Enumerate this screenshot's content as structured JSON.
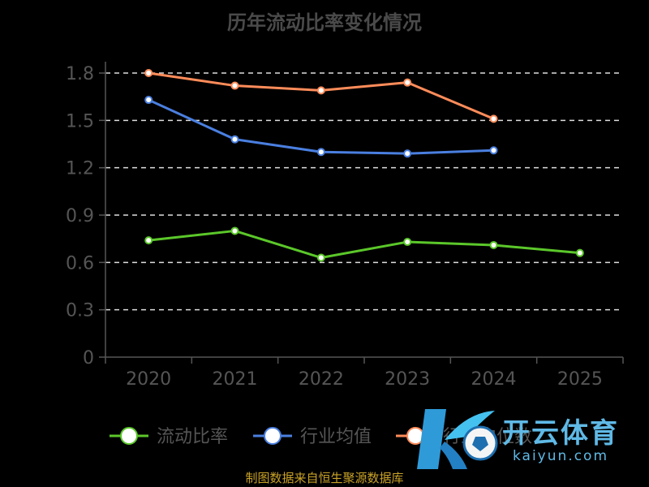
{
  "chart_data": {
    "type": "line",
    "title": "历年流动比率变化情况",
    "categories": [
      "2020",
      "2021",
      "2022",
      "2023",
      "2024",
      "2025"
    ],
    "ylim": [
      0,
      1.8
    ],
    "yticks": [
      "0",
      "0.3",
      "0.6",
      "0.9",
      "1.2",
      "1.5",
      "1.8"
    ],
    "grid": true,
    "legend_position": "bottom",
    "series": [
      {
        "name": "流动比率",
        "color": "#5bc72a",
        "values": [
          0.74,
          0.8,
          0.63,
          0.73,
          0.71,
          0.66
        ]
      },
      {
        "name": "行业均值",
        "color": "#4a7fe0",
        "values": [
          1.63,
          1.38,
          1.3,
          1.29,
          1.31,
          null
        ]
      },
      {
        "name": "行业中位数",
        "color": "#ff8c5a",
        "values": [
          1.8,
          1.72,
          1.69,
          1.74,
          1.51,
          null
        ]
      }
    ]
  },
  "source": "制图数据来自恒生聚源数据库",
  "watermark": {
    "text_cn": "开云体育",
    "text_en": "kaiyun.com"
  }
}
